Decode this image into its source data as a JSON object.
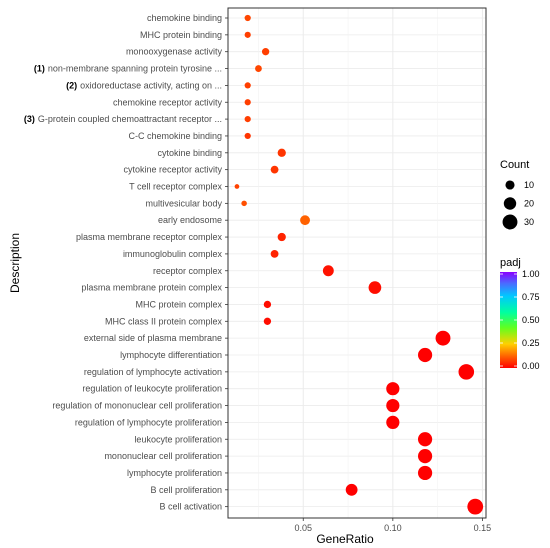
{
  "chart_data": {
    "type": "scatter",
    "xlabel": "GeneRatio",
    "ylabel": "Description",
    "xlim": [
      0.008,
      0.152
    ],
    "xticks": [
      0.05,
      0.1,
      0.15
    ],
    "xtick_labels": [
      "0.05",
      "0.10",
      "0.15"
    ],
    "categories": [
      {
        "label": "chemokine binding",
        "prefix": "",
        "x": 0.019,
        "count": 4,
        "padj": 0.16
      },
      {
        "label": "MHC protein binding",
        "prefix": "",
        "x": 0.019,
        "count": 4,
        "padj": 0.14
      },
      {
        "label": "monooxygenase activity",
        "prefix": "",
        "x": 0.029,
        "count": 6,
        "padj": 0.14
      },
      {
        "label": "non-membrane spanning protein tyrosine ...",
        "prefix": "(1)",
        "x": 0.025,
        "count": 5,
        "padj": 0.16
      },
      {
        "label": "oxidoreductase activity, acting on ...",
        "prefix": "(2)",
        "x": 0.019,
        "count": 4,
        "padj": 0.14
      },
      {
        "label": "chemokine receptor activity",
        "prefix": "",
        "x": 0.019,
        "count": 4,
        "padj": 0.14
      },
      {
        "label": "G-protein coupled chemoattractant receptor ...",
        "prefix": "(3)",
        "x": 0.019,
        "count": 4,
        "padj": 0.14
      },
      {
        "label": "C-C chemokine binding",
        "prefix": "",
        "x": 0.019,
        "count": 4,
        "padj": 0.12
      },
      {
        "label": "cytokine binding",
        "prefix": "",
        "x": 0.038,
        "count": 8,
        "padj": 0.12
      },
      {
        "label": "cytokine receptor activity",
        "prefix": "",
        "x": 0.034,
        "count": 7,
        "padj": 0.12
      },
      {
        "label": "T cell receptor complex",
        "prefix": "",
        "x": 0.013,
        "count": 2,
        "padj": 0.15
      },
      {
        "label": "multivesicular body",
        "prefix": "",
        "x": 0.017,
        "count": 3,
        "padj": 0.18
      },
      {
        "label": "early endosome",
        "prefix": "",
        "x": 0.051,
        "count": 12,
        "padj": 0.22
      },
      {
        "label": "plasma membrane receptor complex",
        "prefix": "",
        "x": 0.038,
        "count": 8,
        "padj": 0.08
      },
      {
        "label": "immunoglobulin complex",
        "prefix": "",
        "x": 0.034,
        "count": 7,
        "padj": 0.08
      },
      {
        "label": "receptor complex",
        "prefix": "",
        "x": 0.064,
        "count": 15,
        "padj": 0.04
      },
      {
        "label": "plasma membrane protein complex",
        "prefix": "",
        "x": 0.09,
        "count": 21,
        "padj": 0.03
      },
      {
        "label": "MHC protein complex",
        "prefix": "",
        "x": 0.03,
        "count": 6,
        "padj": 0.03
      },
      {
        "label": "MHC class II protein complex",
        "prefix": "",
        "x": 0.03,
        "count": 6,
        "padj": 0.03
      },
      {
        "label": "external side of plasma membrane",
        "prefix": "",
        "x": 0.128,
        "count": 30,
        "padj": 0.0
      },
      {
        "label": "lymphocyte differentiation",
        "prefix": "",
        "x": 0.118,
        "count": 27,
        "padj": 0.0
      },
      {
        "label": "regulation of lymphocyte activation",
        "prefix": "",
        "x": 0.141,
        "count": 33,
        "padj": 0.0
      },
      {
        "label": "regulation of leukocyte proliferation",
        "prefix": "",
        "x": 0.1,
        "count": 23,
        "padj": 0.0
      },
      {
        "label": "regulation of mononuclear cell proliferation",
        "prefix": "",
        "x": 0.1,
        "count": 23,
        "padj": 0.0
      },
      {
        "label": "regulation of lymphocyte proliferation",
        "prefix": "",
        "x": 0.1,
        "count": 23,
        "padj": 0.0
      },
      {
        "label": "leukocyte proliferation",
        "prefix": "",
        "x": 0.118,
        "count": 27,
        "padj": 0.0
      },
      {
        "label": "mononuclear cell proliferation",
        "prefix": "",
        "x": 0.118,
        "count": 27,
        "padj": 0.0
      },
      {
        "label": "lymphocyte proliferation",
        "prefix": "",
        "x": 0.118,
        "count": 27,
        "padj": 0.0
      },
      {
        "label": "B cell proliferation",
        "prefix": "",
        "x": 0.077,
        "count": 18,
        "padj": 0.0
      },
      {
        "label": "B cell activation",
        "prefix": "",
        "x": 0.146,
        "count": 34,
        "padj": 0.0
      }
    ],
    "size_legend": {
      "title": "Count",
      "values": [
        10,
        20,
        30
      ],
      "labels": [
        "10",
        "20",
        "30"
      ]
    },
    "color_legend": {
      "title": "padj",
      "range": [
        0.0,
        1.0
      ],
      "ticks": [
        1.0,
        0.75,
        0.5,
        0.25,
        0.0
      ],
      "tick_labels": [
        "1.00",
        "0.75",
        "0.50",
        "0.25",
        "0.00"
      ]
    },
    "grid": true
  }
}
